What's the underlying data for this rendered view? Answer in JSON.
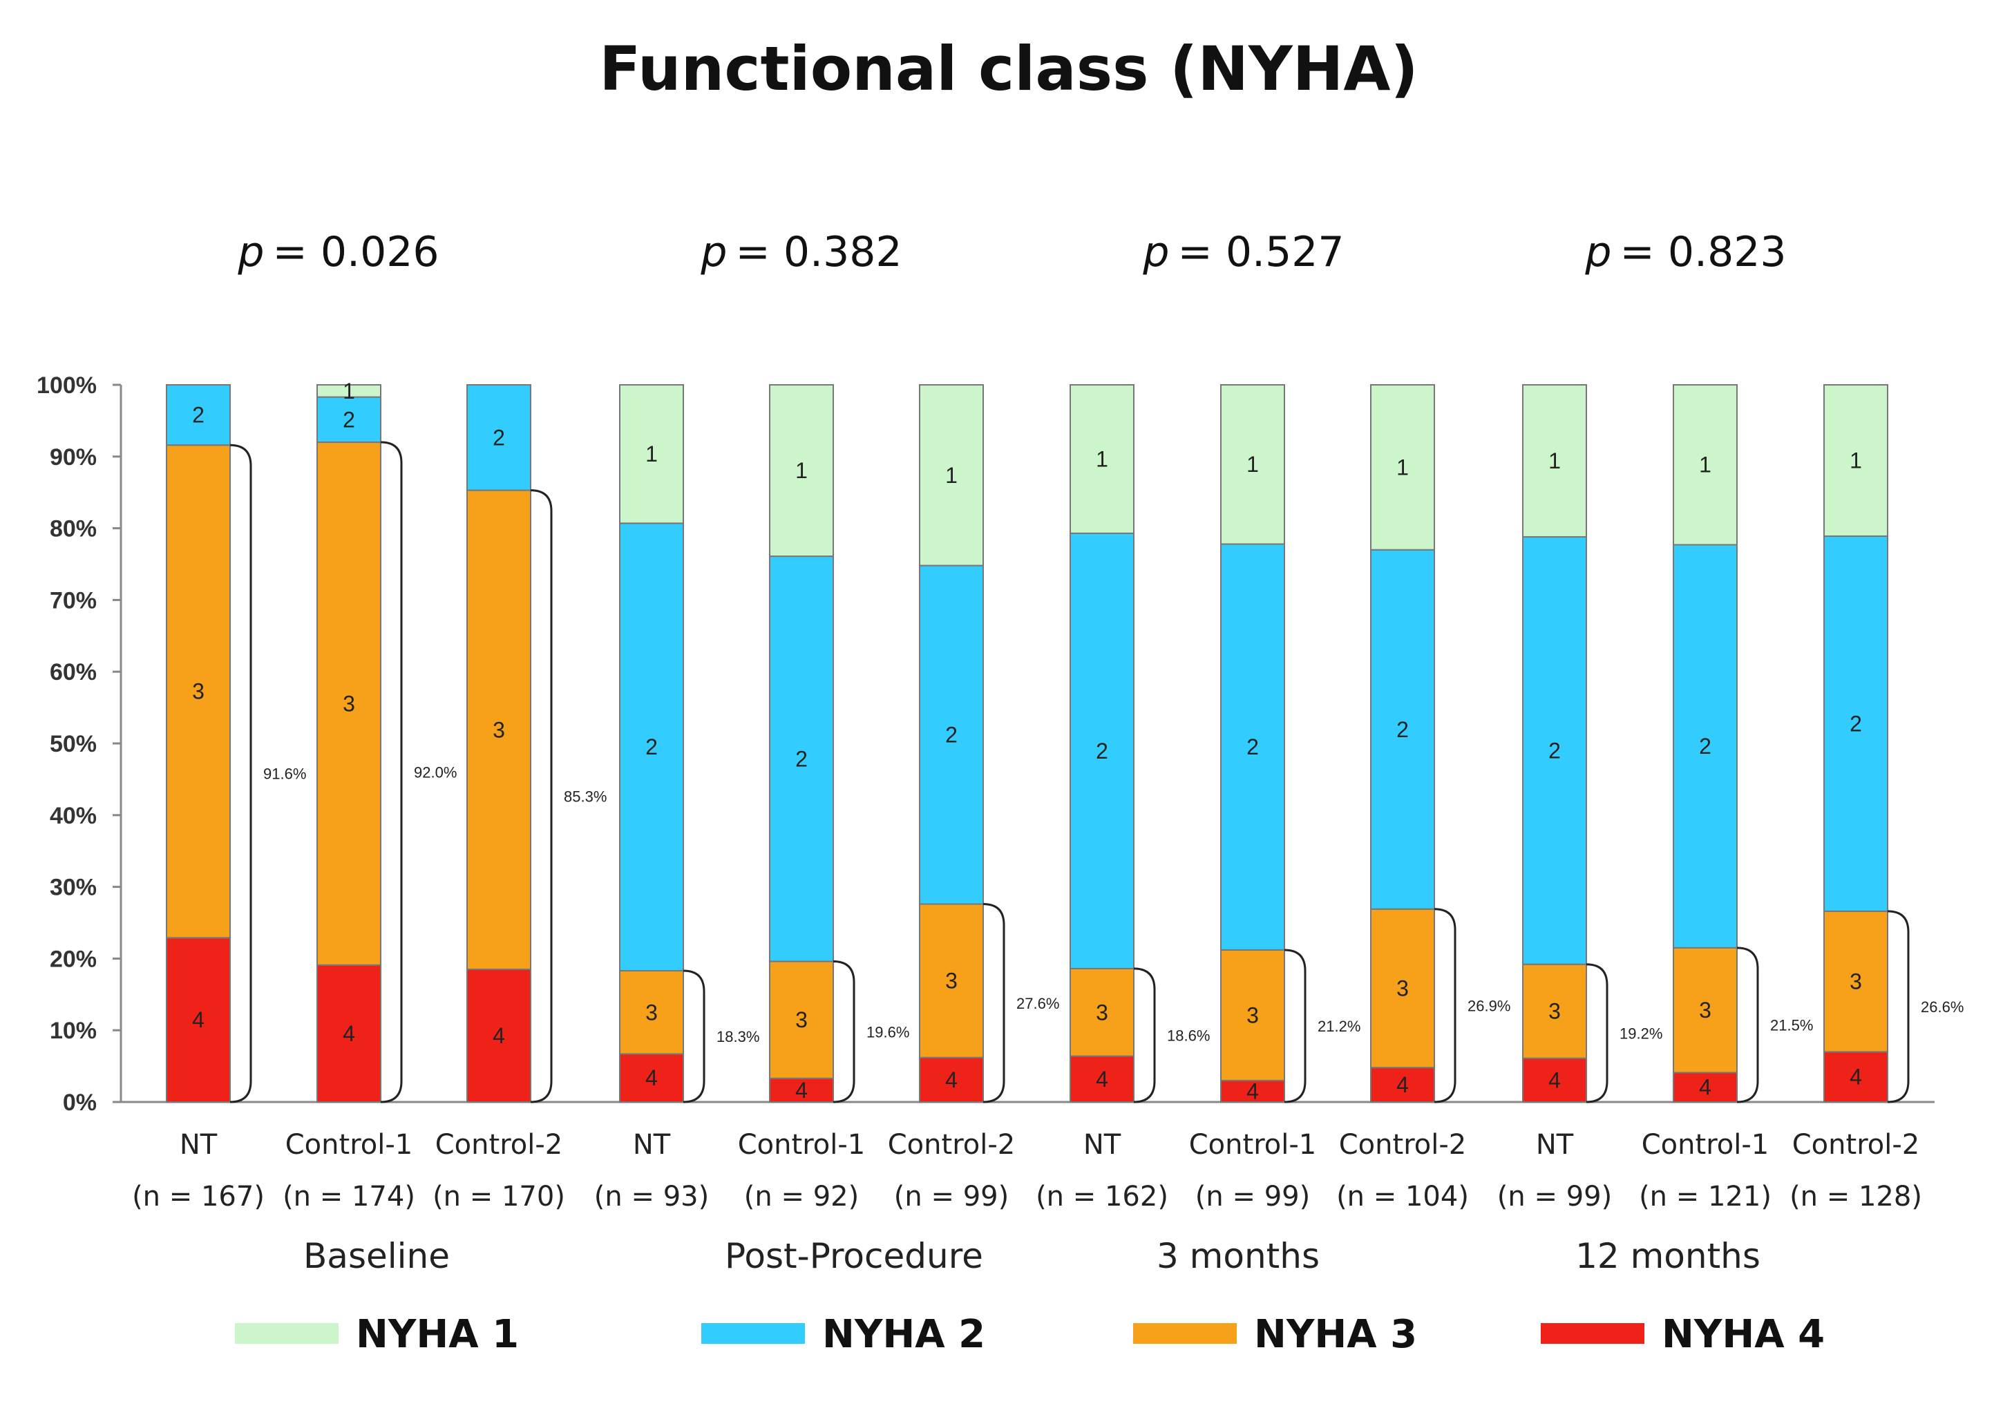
{
  "chart_data": {
    "type": "bar",
    "stacked": true,
    "title": "Functional class (NYHA)",
    "ylim": [
      0,
      100
    ],
    "yticks": [
      "0%",
      "10%",
      "20%",
      "30%",
      "40%",
      "50%",
      "60%",
      "70%",
      "80%",
      "90%",
      "100%"
    ],
    "legend_position": "bottom",
    "colors": {
      "NYHA 1": "#ccf5cc",
      "NYHA 2": "#33ccff",
      "NYHA 3": "#f7a11a",
      "NYHA 4": "#ee2219"
    },
    "segment_labels": [
      "1",
      "2",
      "3",
      "4"
    ],
    "legend": [
      "NYHA 1",
      "NYHA 2",
      "NYHA 3",
      "NYHA 4"
    ],
    "groups": [
      {
        "name": "Baseline",
        "p_prefix": "p",
        "p_value": "= 0.026",
        "bars": [
          {
            "label": "NT",
            "n_label": "(n = 167)",
            "nyha1": 0,
            "nyha2": 8.4,
            "nyha3": 68.7,
            "nyha4": 22.9,
            "pct_label": "91.6%"
          },
          {
            "label": "Control-1",
            "n_label": "(n = 174)",
            "nyha1": 1.7,
            "nyha2": 6.3,
            "nyha3": 72.9,
            "nyha4": 19.1,
            "pct_label": "92.0%"
          },
          {
            "label": "Control-2",
            "n_label": "(n = 170)",
            "nyha1": 0,
            "nyha2": 14.7,
            "nyha3": 66.8,
            "nyha4": 18.5,
            "pct_label": "85.3%"
          }
        ]
      },
      {
        "name": "Post-Procedure",
        "p_prefix": "p",
        "p_value": "= 0.382",
        "bars": [
          {
            "label": "NT",
            "n_label": "(n = 93)",
            "nyha1": 19.3,
            "nyha2": 62.4,
            "nyha3": 11.6,
            "nyha4": 6.7,
            "pct_label": "18.3%"
          },
          {
            "label": "Control-1",
            "n_label": "(n = 92)",
            "nyha1": 23.9,
            "nyha2": 56.5,
            "nyha3": 16.3,
            "nyha4": 3.3,
            "pct_label": "19.6%"
          },
          {
            "label": "Control-2",
            "n_label": "(n = 99)",
            "nyha1": 25.2,
            "nyha2": 47.2,
            "nyha3": 21.4,
            "nyha4": 6.2,
            "pct_label": "27.6%"
          }
        ]
      },
      {
        "name": "3 months",
        "p_prefix": "p",
        "p_value": "= 0.527",
        "bars": [
          {
            "label": "NT",
            "n_label": "(n = 162)",
            "nyha1": 20.7,
            "nyha2": 60.7,
            "nyha3": 12.2,
            "nyha4": 6.4,
            "pct_label": "18.6%"
          },
          {
            "label": "Control-1",
            "n_label": "(n = 99)",
            "nyha1": 22.2,
            "nyha2": 56.6,
            "nyha3": 18.2,
            "nyha4": 3.0,
            "pct_label": "21.2%"
          },
          {
            "label": "Control-2",
            "n_label": "(n = 104)",
            "nyha1": 23.0,
            "nyha2": 50.1,
            "nyha3": 22.1,
            "nyha4": 4.8,
            "pct_label": "26.9%"
          }
        ]
      },
      {
        "name": "12 months",
        "p_prefix": "p",
        "p_value": "= 0.823",
        "bars": [
          {
            "label": "NT",
            "n_label": "(n = 99)",
            "nyha1": 21.2,
            "nyha2": 59.6,
            "nyha3": 13.1,
            "nyha4": 6.1,
            "pct_label": "19.2%"
          },
          {
            "label": "Control-1",
            "n_label": "(n = 121)",
            "nyha1": 22.3,
            "nyha2": 56.2,
            "nyha3": 17.4,
            "nyha4": 4.1,
            "pct_label": "21.5%"
          },
          {
            "label": "Control-2",
            "n_label": "(n = 128)",
            "nyha1": 21.1,
            "nyha2": 52.3,
            "nyha3": 19.6,
            "nyha4": 7.0,
            "pct_label": "26.6%"
          }
        ]
      }
    ]
  }
}
